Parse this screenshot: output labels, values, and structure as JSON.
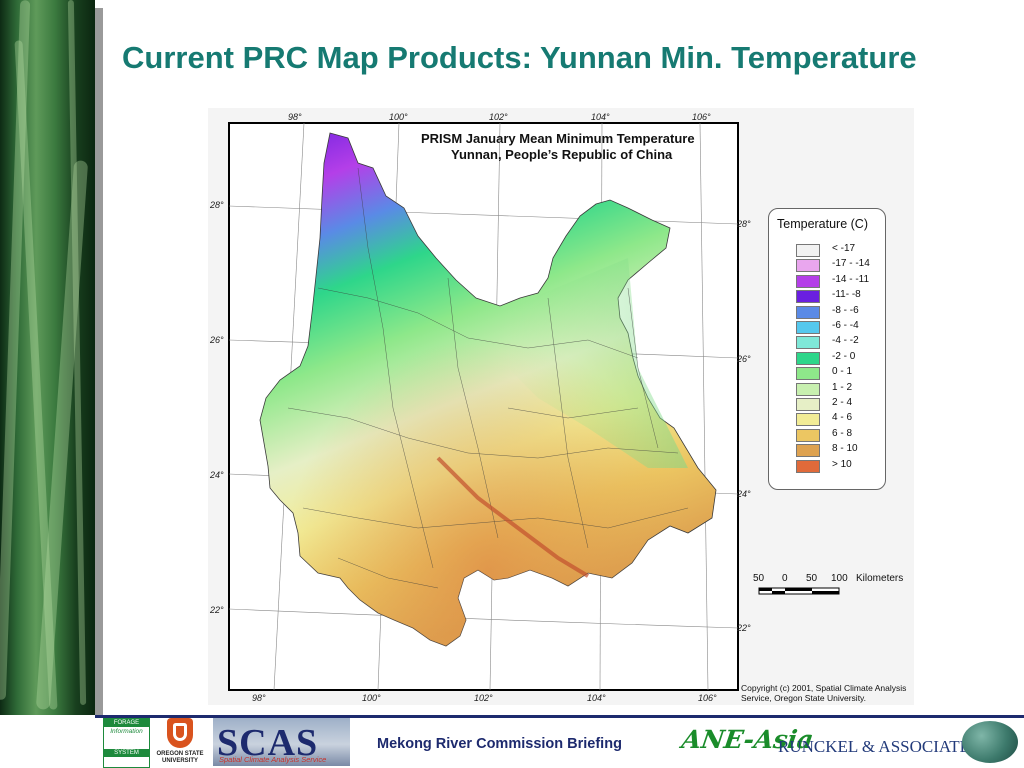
{
  "slide": {
    "title": "Current PRC Map Products: Yunnan Min. Temperature",
    "footer_text": "Mekong River Commission Briefing"
  },
  "map": {
    "title_line1": "PRISM January Mean Minimum Temperature",
    "title_line2": "Yunnan, People’s Republic of China",
    "lon_labels": [
      "98°",
      "100°",
      "102°",
      "104°",
      "106°"
    ],
    "lat_labels": [
      "28°",
      "26°",
      "24°",
      "22°"
    ],
    "scale": {
      "ticks": [
        "50",
        "0",
        "50",
        "100"
      ],
      "unit": "Kilometers"
    },
    "copyright": "Copyright (c) 2001, Spatial Climate Analysis Service, Oregon State University."
  },
  "legend": {
    "title": "Temperature (C)",
    "items": [
      {
        "label": "<  -17",
        "color": "#f2f2f2"
      },
      {
        "label": "-17 - -14",
        "color": "#e9a6ee"
      },
      {
        "label": "-14 - -11",
        "color": "#b43fe8"
      },
      {
        "label": "-11- -8",
        "color": "#6a1fe0"
      },
      {
        "label": "-8 - -6",
        "color": "#5a8ae6"
      },
      {
        "label": "-6 - -4",
        "color": "#55c8ee"
      },
      {
        "label": "-4 - -2",
        "color": "#7fe8d8"
      },
      {
        "label": "-2 - 0",
        "color": "#2ed68a"
      },
      {
        "label": "0 - 1",
        "color": "#8ee88a"
      },
      {
        "label": "1 - 2",
        "color": "#c8f0b0"
      },
      {
        "label": "2 - 4",
        "color": "#e6efc6"
      },
      {
        "label": "4 - 6",
        "color": "#f2ec96"
      },
      {
        "label": "6 - 8",
        "color": "#ecc662"
      },
      {
        "label": "8 - 10",
        "color": "#dea250"
      },
      {
        "label": ">  10",
        "color": "#e06a3a"
      }
    ]
  },
  "logos": {
    "forage": {
      "lines": [
        "FORAGE",
        "Information",
        "SYSTEM"
      ],
      "color": "#1d8a3c"
    },
    "osu": {
      "lines": [
        "OREGON STATE",
        "UNIVERSITY"
      ],
      "color": "#d9531e"
    },
    "scas": {
      "text": "SCAS",
      "subtitle": "Spatial Climate Analysis Service"
    },
    "ane_asia": "ANE-Asia",
    "runckel": "RUNCKEL & ASSOCIATES"
  }
}
